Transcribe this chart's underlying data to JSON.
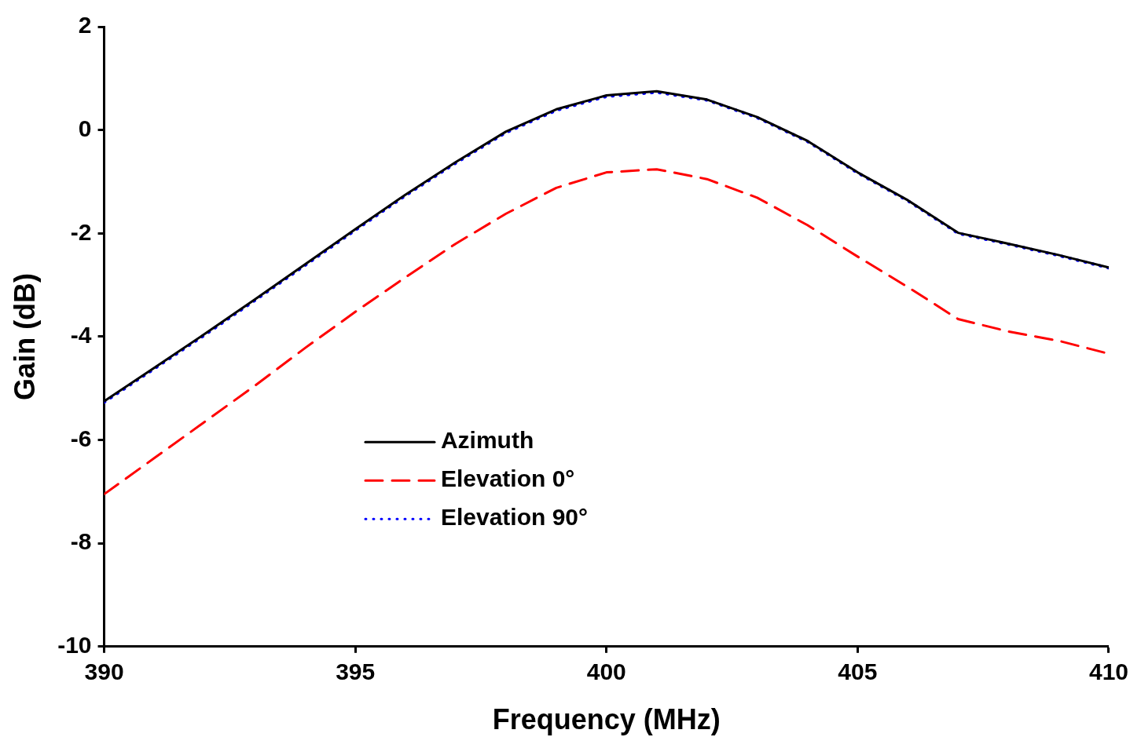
{
  "chart_data": {
    "type": "line",
    "xlabel": "Frequency (MHz)",
    "ylabel": "Gain (dB)",
    "xlim": [
      390,
      410
    ],
    "xticks": [
      390,
      395,
      400,
      405,
      410
    ],
    "ylim": [
      -10,
      2
    ],
    "yticks": [
      -10,
      -8,
      -6,
      -4,
      -2,
      0,
      2
    ],
    "grid": false,
    "legend": "center left",
    "marker": "none",
    "x": [
      390,
      391,
      392,
      393,
      394,
      395,
      396,
      397,
      398,
      399,
      400,
      401,
      402,
      403,
      404,
      405,
      406,
      407,
      408,
      409,
      410
    ],
    "series": [
      {
        "name": "Azimuth",
        "color": "#000000",
        "line_style": "solid",
        "values": [
          -5.25,
          -4.6,
          -3.95,
          -3.28,
          -2.6,
          -1.92,
          -1.25,
          -0.62,
          -0.03,
          0.4,
          0.67,
          0.75,
          0.59,
          0.25,
          -0.21,
          -0.82,
          -1.36,
          -1.99,
          -2.2,
          -2.42,
          -2.66
        ]
      },
      {
        "name": "Elevation 0°",
        "color": "#ff0000",
        "line_style": "dashed",
        "values": [
          -7.05,
          -6.35,
          -5.65,
          -4.95,
          -4.22,
          -3.52,
          -2.85,
          -2.2,
          -1.62,
          -1.12,
          -0.82,
          -0.76,
          -0.95,
          -1.31,
          -1.84,
          -2.45,
          -3.04,
          -3.66,
          -3.9,
          -4.08,
          -4.33
        ]
      },
      {
        "name": "Elevation 90°",
        "color": "#0000ff",
        "line_style": "dotted",
        "values": [
          -5.27,
          -4.62,
          -3.97,
          -3.3,
          -2.62,
          -1.94,
          -1.27,
          -0.64,
          -0.05,
          0.38,
          0.65,
          0.73,
          0.58,
          0.24,
          -0.22,
          -0.83,
          -1.37,
          -2.0,
          -2.21,
          -2.43,
          -2.67
        ]
      }
    ]
  }
}
